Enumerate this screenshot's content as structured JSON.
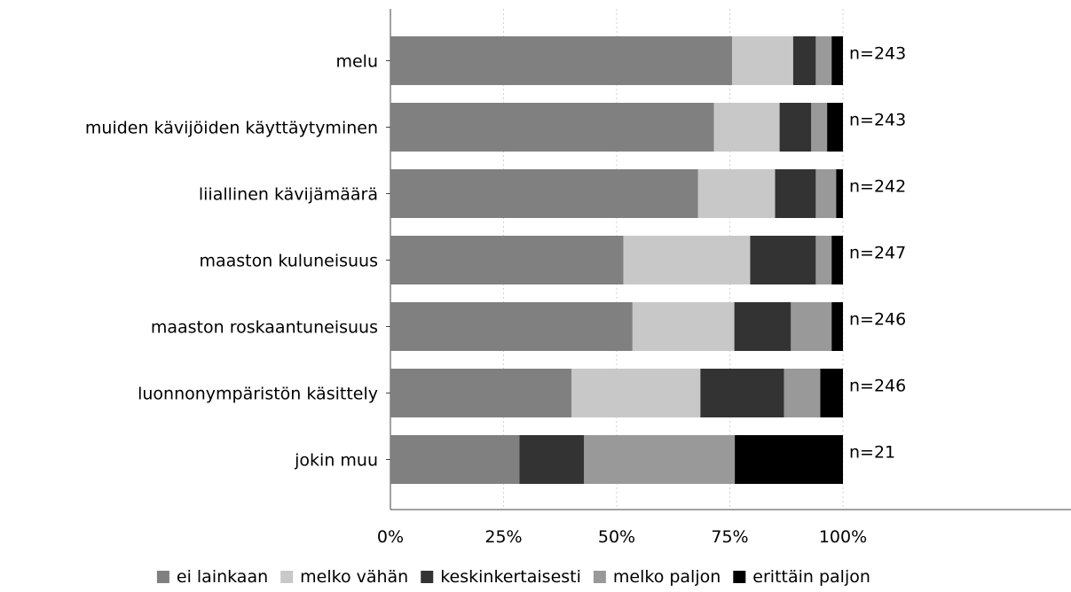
{
  "chart_data": {
    "type": "bar",
    "orientation": "horizontal",
    "stacked": true,
    "percent": true,
    "categories": [
      "melu",
      "muiden kävijöiden käyttäytyminen",
      "liiallinen kävijämäärä",
      "maaston kuluneisuus",
      "maaston roskaantuneisuus",
      "luonnonympäristön käsittely",
      "jokin muu"
    ],
    "n_labels": [
      "n=243",
      "n=243",
      "n=242",
      "n=247",
      "n=246",
      "n=246",
      "n=21"
    ],
    "series": [
      {
        "name": "ei lainkaan",
        "color": "#808080",
        "values": [
          75.5,
          71.5,
          68.0,
          51.5,
          53.5,
          40.0,
          28.5
        ]
      },
      {
        "name": "melko vähän",
        "color": "#c8c8c8",
        "values": [
          13.5,
          14.5,
          17.0,
          28.0,
          22.5,
          28.5,
          0
        ]
      },
      {
        "name": "keskinkertaisesti",
        "color": "#333333",
        "values": [
          5.0,
          7.0,
          9.0,
          14.5,
          12.5,
          18.5,
          14.3
        ]
      },
      {
        "name": "melko paljon",
        "color": "#999999",
        "values": [
          3.5,
          3.5,
          4.5,
          3.5,
          9.0,
          8.0,
          33.3
        ]
      },
      {
        "name": "erittäin paljon",
        "color": "#000000",
        "values": [
          2.5,
          3.5,
          1.5,
          2.5,
          2.5,
          5.0,
          23.9
        ]
      }
    ],
    "xlim": [
      0,
      100
    ],
    "xticks": [
      "0%",
      "25%",
      "50%",
      "75%",
      "100%"
    ],
    "grid": true,
    "legend_position": "bottom"
  }
}
